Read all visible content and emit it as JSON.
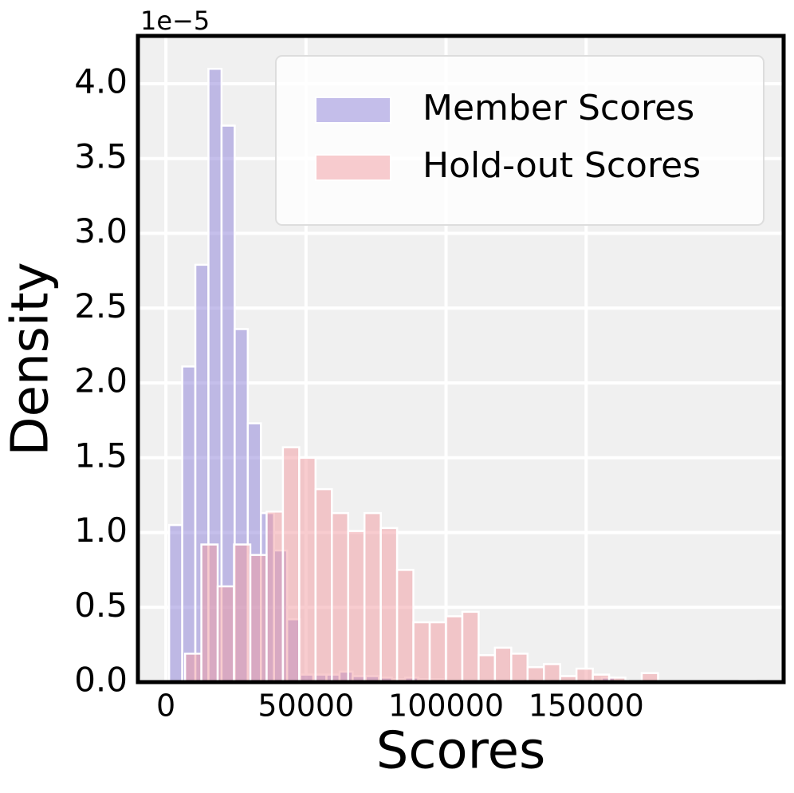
{
  "chart_data": {
    "type": "histogram",
    "xlabel": "Scores",
    "ylabel": "Density",
    "offset_text": "1e−5",
    "xlim": [
      -10000,
      220500
    ],
    "ylim": [
      0,
      4.32
    ],
    "xticks": [
      0,
      50000,
      100000,
      150000
    ],
    "yticks": [
      {
        "value": 0,
        "label": "0.0"
      },
      0.5,
      {
        "value": 1,
        "label": "1.0"
      },
      1.5,
      {
        "value": 2,
        "label": "2.0"
      },
      2.5,
      {
        "value": 3,
        "label": "3.0"
      },
      3.5,
      {
        "value": 4,
        "label": "4.0"
      }
    ],
    "grid": true,
    "legend": "upper right",
    "series": [
      {
        "name": "Member Scores",
        "color": "#8c80d8",
        "bins": [
          1140,
          5820,
          10500,
          15180,
          19860,
          24540,
          29220,
          33900,
          38580,
          43260,
          47940,
          52620,
          57300,
          61980,
          66660,
          71340,
          76020,
          80700,
          85380,
          90060,
          94740,
          99420,
          104100,
          108780,
          113460,
          118140,
          122820,
          127500,
          132180,
          136860,
          141540,
          146220,
          150900,
          155580,
          160260,
          164940
        ],
        "values": [
          1.05,
          2.11,
          2.79,
          4.1,
          3.72,
          2.36,
          1.73,
          1.13,
          0.88,
          0.42,
          0.05,
          0.05,
          0.05,
          0.07,
          0.04,
          0.04,
          0.03,
          0.02,
          0.03,
          0.02,
          0.02,
          0.01,
          0.01,
          0.01,
          0.01,
          0,
          0.01,
          0,
          0.01,
          0,
          0.01,
          0,
          0,
          0.03,
          0.01
        ]
      },
      {
        "name": "Hold-out Scores",
        "color": "#f29aa0",
        "bins": [
          6830,
          12652,
          18474,
          24296,
          30118,
          35940,
          41762,
          47584,
          53406,
          59228,
          65050,
          70872,
          76694,
          82516,
          88338,
          94160,
          99982,
          105804,
          111626,
          117448,
          123270,
          129092,
          134914,
          140736,
          146558,
          152380,
          158202,
          164024,
          169846,
          175668,
          181490,
          187312,
          193134,
          198956,
          204778,
          210600
        ],
        "values": [
          0.19,
          0.92,
          0.64,
          0.92,
          0.85,
          1.14,
          1.57,
          1.5,
          1.29,
          1.13,
          1.01,
          1.13,
          1.03,
          0.75,
          0.4,
          0.4,
          0.44,
          0.47,
          0.18,
          0.23,
          0.19,
          0.1,
          0.12,
          0.04,
          0.09,
          0.05,
          0.03,
          0,
          0.06,
          0,
          0,
          0,
          0,
          0,
          0.01
        ]
      }
    ]
  }
}
